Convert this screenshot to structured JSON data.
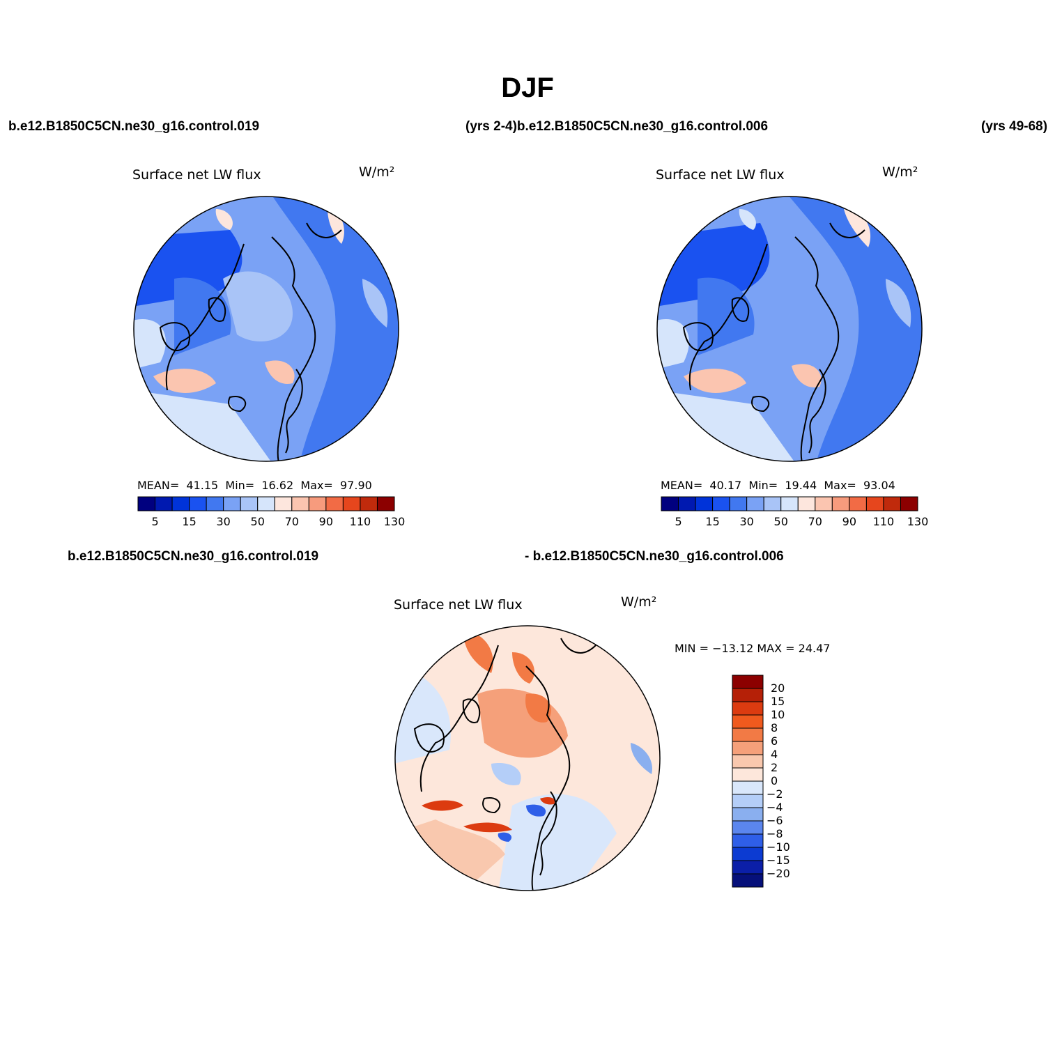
{
  "figure": {
    "title": "DJF",
    "top_left_case": "b.e12.B1850C5CN.ne30_g16.control.019",
    "top_mid_label": "(yrs 2-4)b.e12.B1850C5CN.ne30_g16.control.006",
    "top_right_years": "(yrs 49-68)",
    "bottom_left_case": "b.e12.B1850C5CN.ne30_g16.control.019",
    "bottom_mid_case": "- b.e12.B1850C5CN.ne30_g16.control.006"
  },
  "panels": [
    {
      "title": "Surface net LW flux",
      "units": "W/m²",
      "mean_label": "MEAN=",
      "mean": "41.15",
      "min_label": "Min=",
      "min": "16.62",
      "max_label": "Max=",
      "max": "97.90",
      "colorbar_labels": [
        "5",
        "15",
        "30",
        "50",
        "70",
        "90",
        "110",
        "130"
      ]
    },
    {
      "title": "Surface net LW flux",
      "units": "W/m²",
      "mean_label": "MEAN=",
      "mean": "40.17",
      "min_label": "Min=",
      "min": "19.44",
      "max_label": "Max=",
      "max": "93.04",
      "colorbar_labels": [
        "5",
        "15",
        "30",
        "50",
        "70",
        "90",
        "110",
        "130"
      ]
    }
  ],
  "diff_panel": {
    "title": "Surface net LW flux",
    "units": "W/m²",
    "stats": "MIN = −13.12 MAX =  24.47",
    "colorbar_labels": [
      "20",
      "15",
      "10",
      "8",
      "6",
      "4",
      "2",
      "0",
      "−2",
      "−4",
      "−6",
      "−8",
      "−10",
      "−15",
      "−20"
    ]
  },
  "colors": {
    "abs_scale": [
      "#00007f",
      "#0019b0",
      "#0033d9",
      "#1a52f0",
      "#4178f0",
      "#7aa2f5",
      "#a9c4f7",
      "#d6e5fb",
      "#fde6dd",
      "#fbc5b0",
      "#f79b7d",
      "#f26b45",
      "#e6461d",
      "#c02a0c",
      "#8c0000"
    ],
    "diff_scale": [
      "#8c0000",
      "#b52007",
      "#dc3b10",
      "#f05a1e",
      "#f27a45",
      "#f5a07a",
      "#f9c8ae",
      "#fde7db",
      "#d9e7fb",
      "#b4cef8",
      "#8aafef",
      "#5b86ee",
      "#2f5fe8",
      "#0c3bd2",
      "#0b1fa8",
      "#06107a"
    ]
  }
}
